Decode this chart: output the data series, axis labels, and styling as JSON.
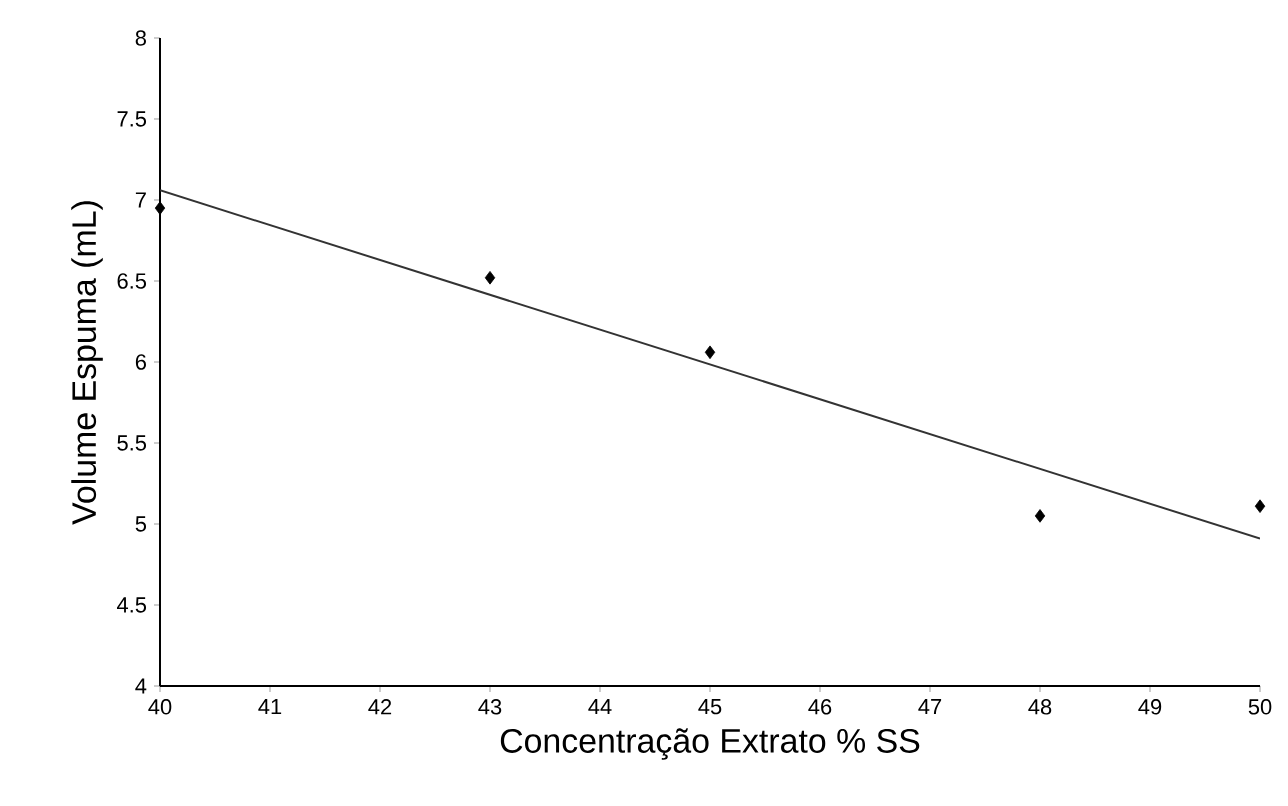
{
  "chart_data": {
    "type": "scatter",
    "xlabel": "Concentração Extrato % SS",
    "ylabel": "Volume Espuma (mL)",
    "series": [
      {
        "color": "#000000",
        "marker": "diamond",
        "x": [
          40,
          43,
          45,
          48,
          50
        ],
        "values": [
          6.95,
          6.52,
          6.06,
          5.05,
          5.11
        ]
      },
      {
        "type": "line",
        "color": "#333333",
        "marker": "none",
        "x": [
          40,
          50
        ],
        "values": [
          7.06,
          4.91
        ]
      }
    ],
    "xlim": [
      40,
      50
    ],
    "ylim": [
      4,
      8
    ],
    "xticks": [
      40,
      41,
      42,
      43,
      44,
      45,
      46,
      47,
      48,
      49,
      50
    ],
    "yticks": [
      4,
      4.5,
      5,
      5.5,
      6,
      6.5,
      7,
      7.5,
      8
    ]
  }
}
